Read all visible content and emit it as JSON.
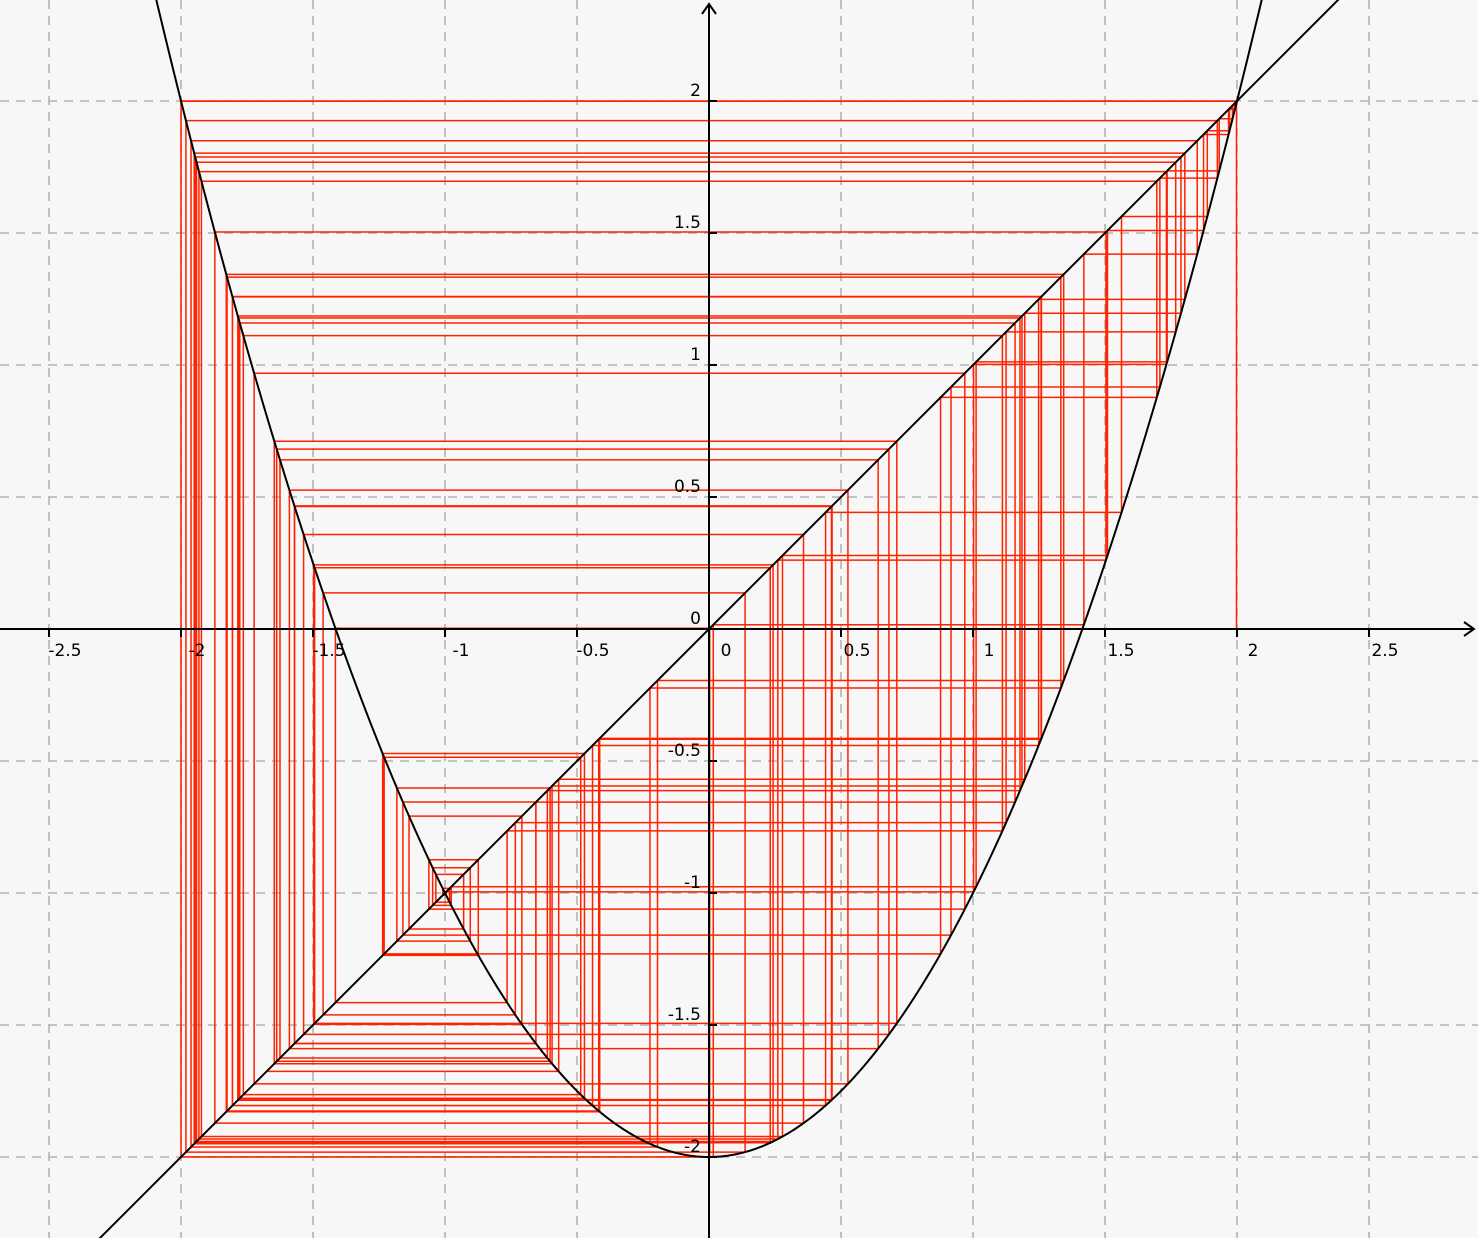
{
  "chart_data": {
    "type": "line",
    "title": "",
    "xlabel": "",
    "ylabel": "",
    "xlim": [
      -2.7,
      2.9
    ],
    "ylim": [
      -2.3,
      2.37
    ],
    "grid": true,
    "x_ticks": [
      {
        "value": -2.5,
        "label": "-2.5"
      },
      {
        "value": -2,
        "label": "-2"
      },
      {
        "value": -1.5,
        "label": "-1.5"
      },
      {
        "value": -1,
        "label": "-1"
      },
      {
        "value": -0.5,
        "label": "-0.5"
      },
      {
        "value": 0,
        "label": "0"
      },
      {
        "value": 0.5,
        "label": "0.5"
      },
      {
        "value": 1,
        "label": "1"
      },
      {
        "value": 1.5,
        "label": "1.5"
      },
      {
        "value": 2,
        "label": "2"
      },
      {
        "value": 2.5,
        "label": "2.5"
      }
    ],
    "y_ticks": [
      {
        "value": 2,
        "label": "2"
      },
      {
        "value": 1.5,
        "label": "1.5"
      },
      {
        "value": 1,
        "label": "1"
      },
      {
        "value": 0.5,
        "label": "0.5"
      },
      {
        "value": 0,
        "label": "0"
      },
      {
        "value": -0.5,
        "label": "-0.5"
      },
      {
        "value": -1,
        "label": "-1"
      },
      {
        "value": -1.5,
        "label": "-1.5"
      },
      {
        "value": -2,
        "label": "-2"
      }
    ],
    "series": [
      {
        "function": "x^2 - 2",
        "color": "#000000"
      },
      {
        "function": "x",
        "color": "#000000"
      },
      {
        "type": "cobweb",
        "map": "x^2 - 2",
        "start": 1.998,
        "iterations": 120,
        "color": "#ff2200"
      }
    ]
  }
}
